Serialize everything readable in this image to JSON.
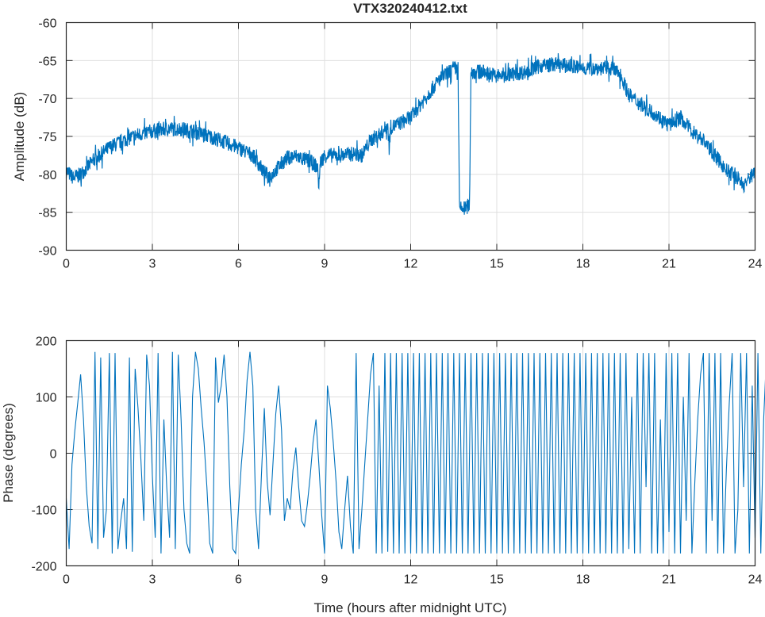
{
  "chart_data": [
    {
      "type": "line",
      "title": "VTX320240412.txt",
      "xlabel": "",
      "ylabel": "Amplitude (dB)",
      "xlim": [
        0,
        24
      ],
      "ylim": [
        -90,
        -60
      ],
      "xticks": [
        "0",
        "3",
        "6",
        "9",
        "12",
        "15",
        "18",
        "21",
        "24"
      ],
      "yticks": [
        "-60",
        "-65",
        "-70",
        "-75",
        "-80",
        "-85",
        "-90"
      ],
      "grid": true,
      "color": "#0072BD",
      "noise_band_db": 1.0,
      "series": [
        {
          "name": "amplitude",
          "x": [
            0,
            0.25,
            0.5,
            1,
            1.5,
            2,
            2.5,
            3,
            3.5,
            4,
            4.5,
            5,
            5.5,
            6,
            6.5,
            6.9,
            7.1,
            7.4,
            7.7,
            8,
            8.5,
            8.75,
            8.8,
            8.85,
            9,
            9.5,
            10,
            10.3,
            10.6,
            11,
            11.2,
            11.25,
            11.3,
            11.5,
            12,
            12.5,
            13,
            13.5,
            13.65,
            13.7,
            13.9,
            14.05,
            14.1,
            14.5,
            15,
            15.5,
            16,
            16.5,
            17,
            17.5,
            18,
            18.5,
            19,
            19.3,
            19.6,
            20,
            20.5,
            21,
            21.4,
            21.8,
            22.2,
            22.6,
            23,
            23.4,
            23.6,
            24
          ],
          "y": [
            -79.5,
            -80.5,
            -80,
            -78,
            -76.5,
            -75.5,
            -74.8,
            -74.3,
            -74,
            -74,
            -74.4,
            -75,
            -75.7,
            -76.5,
            -77.5,
            -79.8,
            -80.3,
            -79,
            -77.8,
            -77.6,
            -78.3,
            -79,
            -81.5,
            -78.5,
            -77.5,
            -77.5,
            -77.3,
            -77.5,
            -75.5,
            -74.5,
            -73.5,
            -76.5,
            -73.8,
            -73.5,
            -72.5,
            -70,
            -67.5,
            -66,
            -66,
            -84.5,
            -84.5,
            -84,
            -66.5,
            -66.5,
            -67,
            -66.8,
            -66.5,
            -65.7,
            -65.5,
            -65.7,
            -66,
            -66,
            -66,
            -66.8,
            -69.5,
            -70.8,
            -72,
            -73.5,
            -72.5,
            -74.3,
            -75.5,
            -77.5,
            -79.5,
            -80.5,
            -81.5,
            -79.5
          ]
        }
      ]
    },
    {
      "type": "line",
      "title": "",
      "xlabel": "Time (hours after midnight UTC)",
      "ylabel": "Phase (degrees)",
      "xlim": [
        0,
        24
      ],
      "ylim": [
        -200,
        200
      ],
      "xticks": [
        "0",
        "3",
        "6",
        "9",
        "12",
        "15",
        "18",
        "21",
        "24"
      ],
      "yticks": [
        "200",
        "100",
        "0",
        "-100",
        "-200"
      ],
      "grid": true,
      "color": "#0072BD",
      "x_step_hours": 0.1,
      "series": [
        {
          "name": "phase",
          "y": [
            -80,
            -170,
            -20,
            40,
            90,
            140,
            60,
            -60,
            -130,
            -160,
            180,
            -170,
            170,
            -150,
            -100,
            178,
            -178,
            178,
            -170,
            -120,
            -80,
            -170,
            170,
            -175,
            150,
            80,
            -10,
            -120,
            175,
            120,
            -40,
            -150,
            178,
            -178,
            60,
            -60,
            -150,
            180,
            -170,
            175,
            60,
            -100,
            -160,
            -178,
            100,
            180,
            150,
            80,
            20,
            -60,
            -160,
            -178,
            170,
            90,
            120,
            175,
            100,
            -60,
            -170,
            -178,
            -100,
            -20,
            40,
            130,
            180,
            120,
            -100,
            -170,
            -40,
            80,
            -50,
            -110,
            -20,
            70,
            120,
            40,
            -120,
            -80,
            -100,
            -30,
            10,
            -60,
            -120,
            -130,
            -90,
            -40,
            20,
            60,
            -20,
            -110,
            -178,
            120,
            80,
            20,
            -50,
            -140,
            -170,
            -100,
            -40,
            -130,
            -178,
            178,
            -170,
            -100,
            -20,
            60,
            140,
            178,
            -178,
            120,
            -178,
            178,
            -175,
            178,
            -178,
            178,
            -178,
            178,
            -178,
            178,
            -178,
            178,
            -178,
            178,
            -178,
            178,
            -178,
            178,
            -178,
            178,
            -178,
            178,
            -178,
            178,
            -178,
            178,
            -178,
            178,
            -178,
            178,
            -178,
            178,
            -178,
            178,
            -178,
            178,
            -178,
            178,
            -178,
            178,
            -178,
            178,
            -178,
            178,
            -178,
            178,
            -178,
            178,
            -178,
            178,
            -178,
            178,
            -178,
            178,
            -178,
            178,
            -178,
            178,
            -178,
            178,
            -178,
            178,
            -178,
            178,
            -178,
            178,
            -178,
            178,
            -178,
            178,
            -178,
            178,
            -178,
            178,
            -178,
            178,
            -178,
            178,
            -178,
            178,
            -178,
            178,
            -178,
            178,
            -178,
            178,
            -170,
            100,
            -178,
            178,
            -178,
            178,
            -60,
            178,
            -178,
            178,
            -178,
            60,
            -178,
            178,
            -140,
            178,
            -178,
            178,
            -178,
            100,
            -120,
            178,
            -178,
            -50,
            60,
            140,
            178,
            -178,
            178,
            -120,
            178,
            -178,
            178,
            -178,
            -30,
            90,
            178,
            -178,
            -100,
            178,
            -60,
            178,
            -178,
            120,
            -150,
            178,
            -178,
            60,
            178,
            -178,
            160,
            60,
            140
          ]
        }
      ]
    }
  ]
}
